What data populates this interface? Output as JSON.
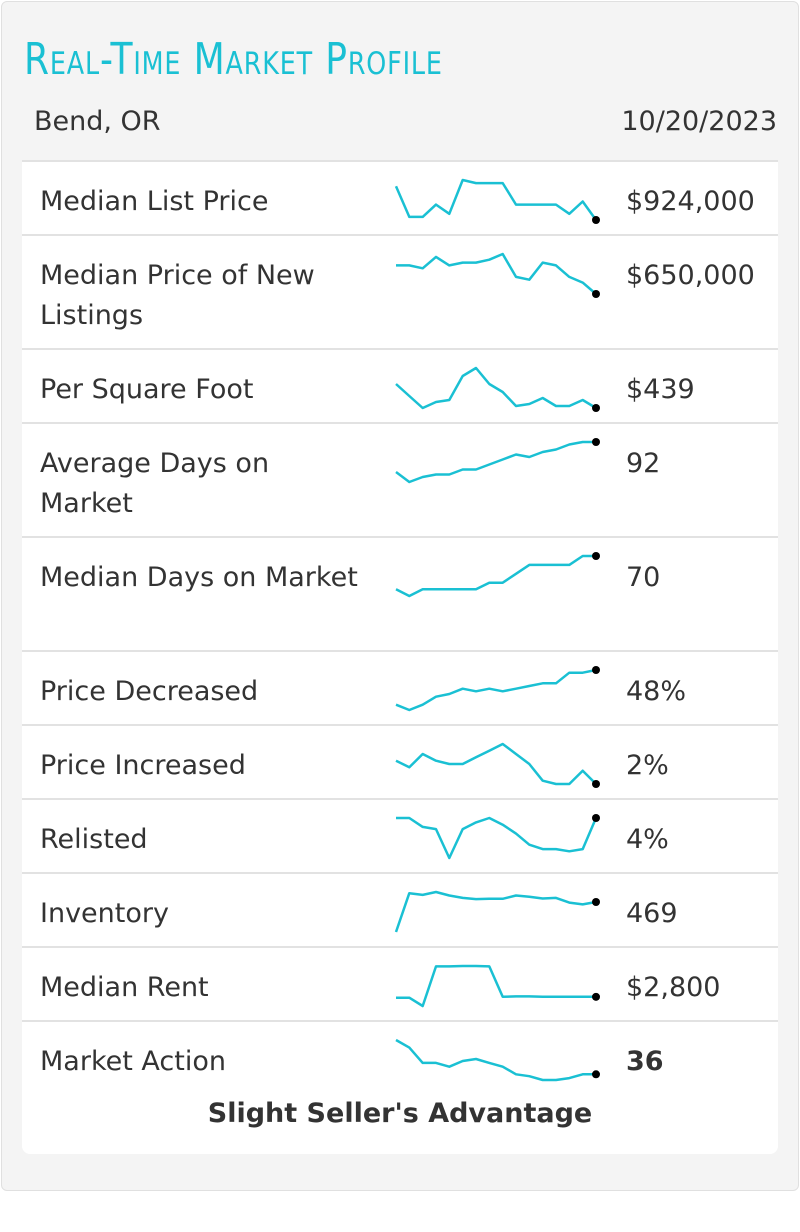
{
  "header": {
    "title": "Real-Time Market Profile",
    "location": "Bend, OR",
    "date": "10/20/2023"
  },
  "colors": {
    "accent": "#1ac0d3",
    "endpoint": "#000000"
  },
  "metrics": [
    {
      "label": "Median List Price",
      "value": "$924,000",
      "trend": [
        10,
        9,
        9,
        9.4,
        9.1,
        10.2,
        10.1,
        10.1,
        10.1,
        9.4,
        9.4,
        9.4,
        9.4,
        9.1,
        9.5,
        8.9
      ]
    },
    {
      "label": "Median Price of New Listings",
      "value": "$650,000",
      "trend": [
        6.6,
        6.6,
        6.5,
        6.9,
        6.6,
        6.7,
        6.7,
        6.8,
        7.0,
        6.2,
        6.1,
        6.7,
        6.6,
        6.2,
        6.0,
        5.6
      ]
    },
    {
      "label": "Per Square Foot",
      "value": "$439",
      "trend": [
        440,
        434,
        428,
        431,
        432,
        444,
        448,
        440,
        436,
        429,
        430,
        433,
        429,
        429,
        432,
        428
      ]
    },
    {
      "label": "Average Days on Market",
      "value": "92",
      "trend": [
        70,
        66,
        68,
        69,
        69,
        71,
        71,
        73,
        75,
        77,
        76,
        78,
        79,
        81,
        82,
        82
      ]
    },
    {
      "label": "Median Days on Market",
      "value": "70",
      "trend": [
        47,
        44,
        47,
        47,
        47,
        47,
        47,
        50,
        50,
        54,
        58,
        58,
        58,
        58,
        62,
        62
      ]
    },
    {
      "label": "Price Decreased",
      "value": "48%",
      "trend": [
        29,
        27,
        29,
        32,
        33,
        35,
        34,
        35,
        34,
        35,
        36,
        37,
        37,
        41,
        41,
        42
      ]
    },
    {
      "label": "Price Increased",
      "value": "2%",
      "trend": [
        2.5,
        2.3,
        2.7,
        2.5,
        2.4,
        2.4,
        2.6,
        2.8,
        3.0,
        2.7,
        2.4,
        1.9,
        1.8,
        1.8,
        2.2,
        1.8
      ]
    },
    {
      "label": "Relisted",
      "value": "4%",
      "trend": [
        4.0,
        4.0,
        3.6,
        3.5,
        2.2,
        3.5,
        3.8,
        4.0,
        3.7,
        3.3,
        2.8,
        2.6,
        2.6,
        2.5,
        2.6,
        4.0
      ]
    },
    {
      "label": "Inventory",
      "value": "469",
      "trend": [
        200,
        530,
        515,
        540,
        510,
        490,
        480,
        482,
        482,
        510,
        500,
        485,
        490,
        450,
        435,
        455
      ]
    },
    {
      "label": "Median Rent",
      "value": "$2,800",
      "trend": [
        2800,
        2800,
        2600,
        3550,
        3550,
        3560,
        3560,
        3550,
        2820,
        2830,
        2830,
        2820,
        2820,
        2820,
        2820,
        2820
      ]
    },
    {
      "label": "Market Action",
      "value": "36",
      "trend": [
        47,
        45,
        41,
        41,
        40,
        41.5,
        42,
        41,
        40,
        38,
        37.5,
        36.5,
        36.5,
        37,
        38,
        38
      ]
    }
  ],
  "market_action_summary": "Slight Seller's Advantage"
}
